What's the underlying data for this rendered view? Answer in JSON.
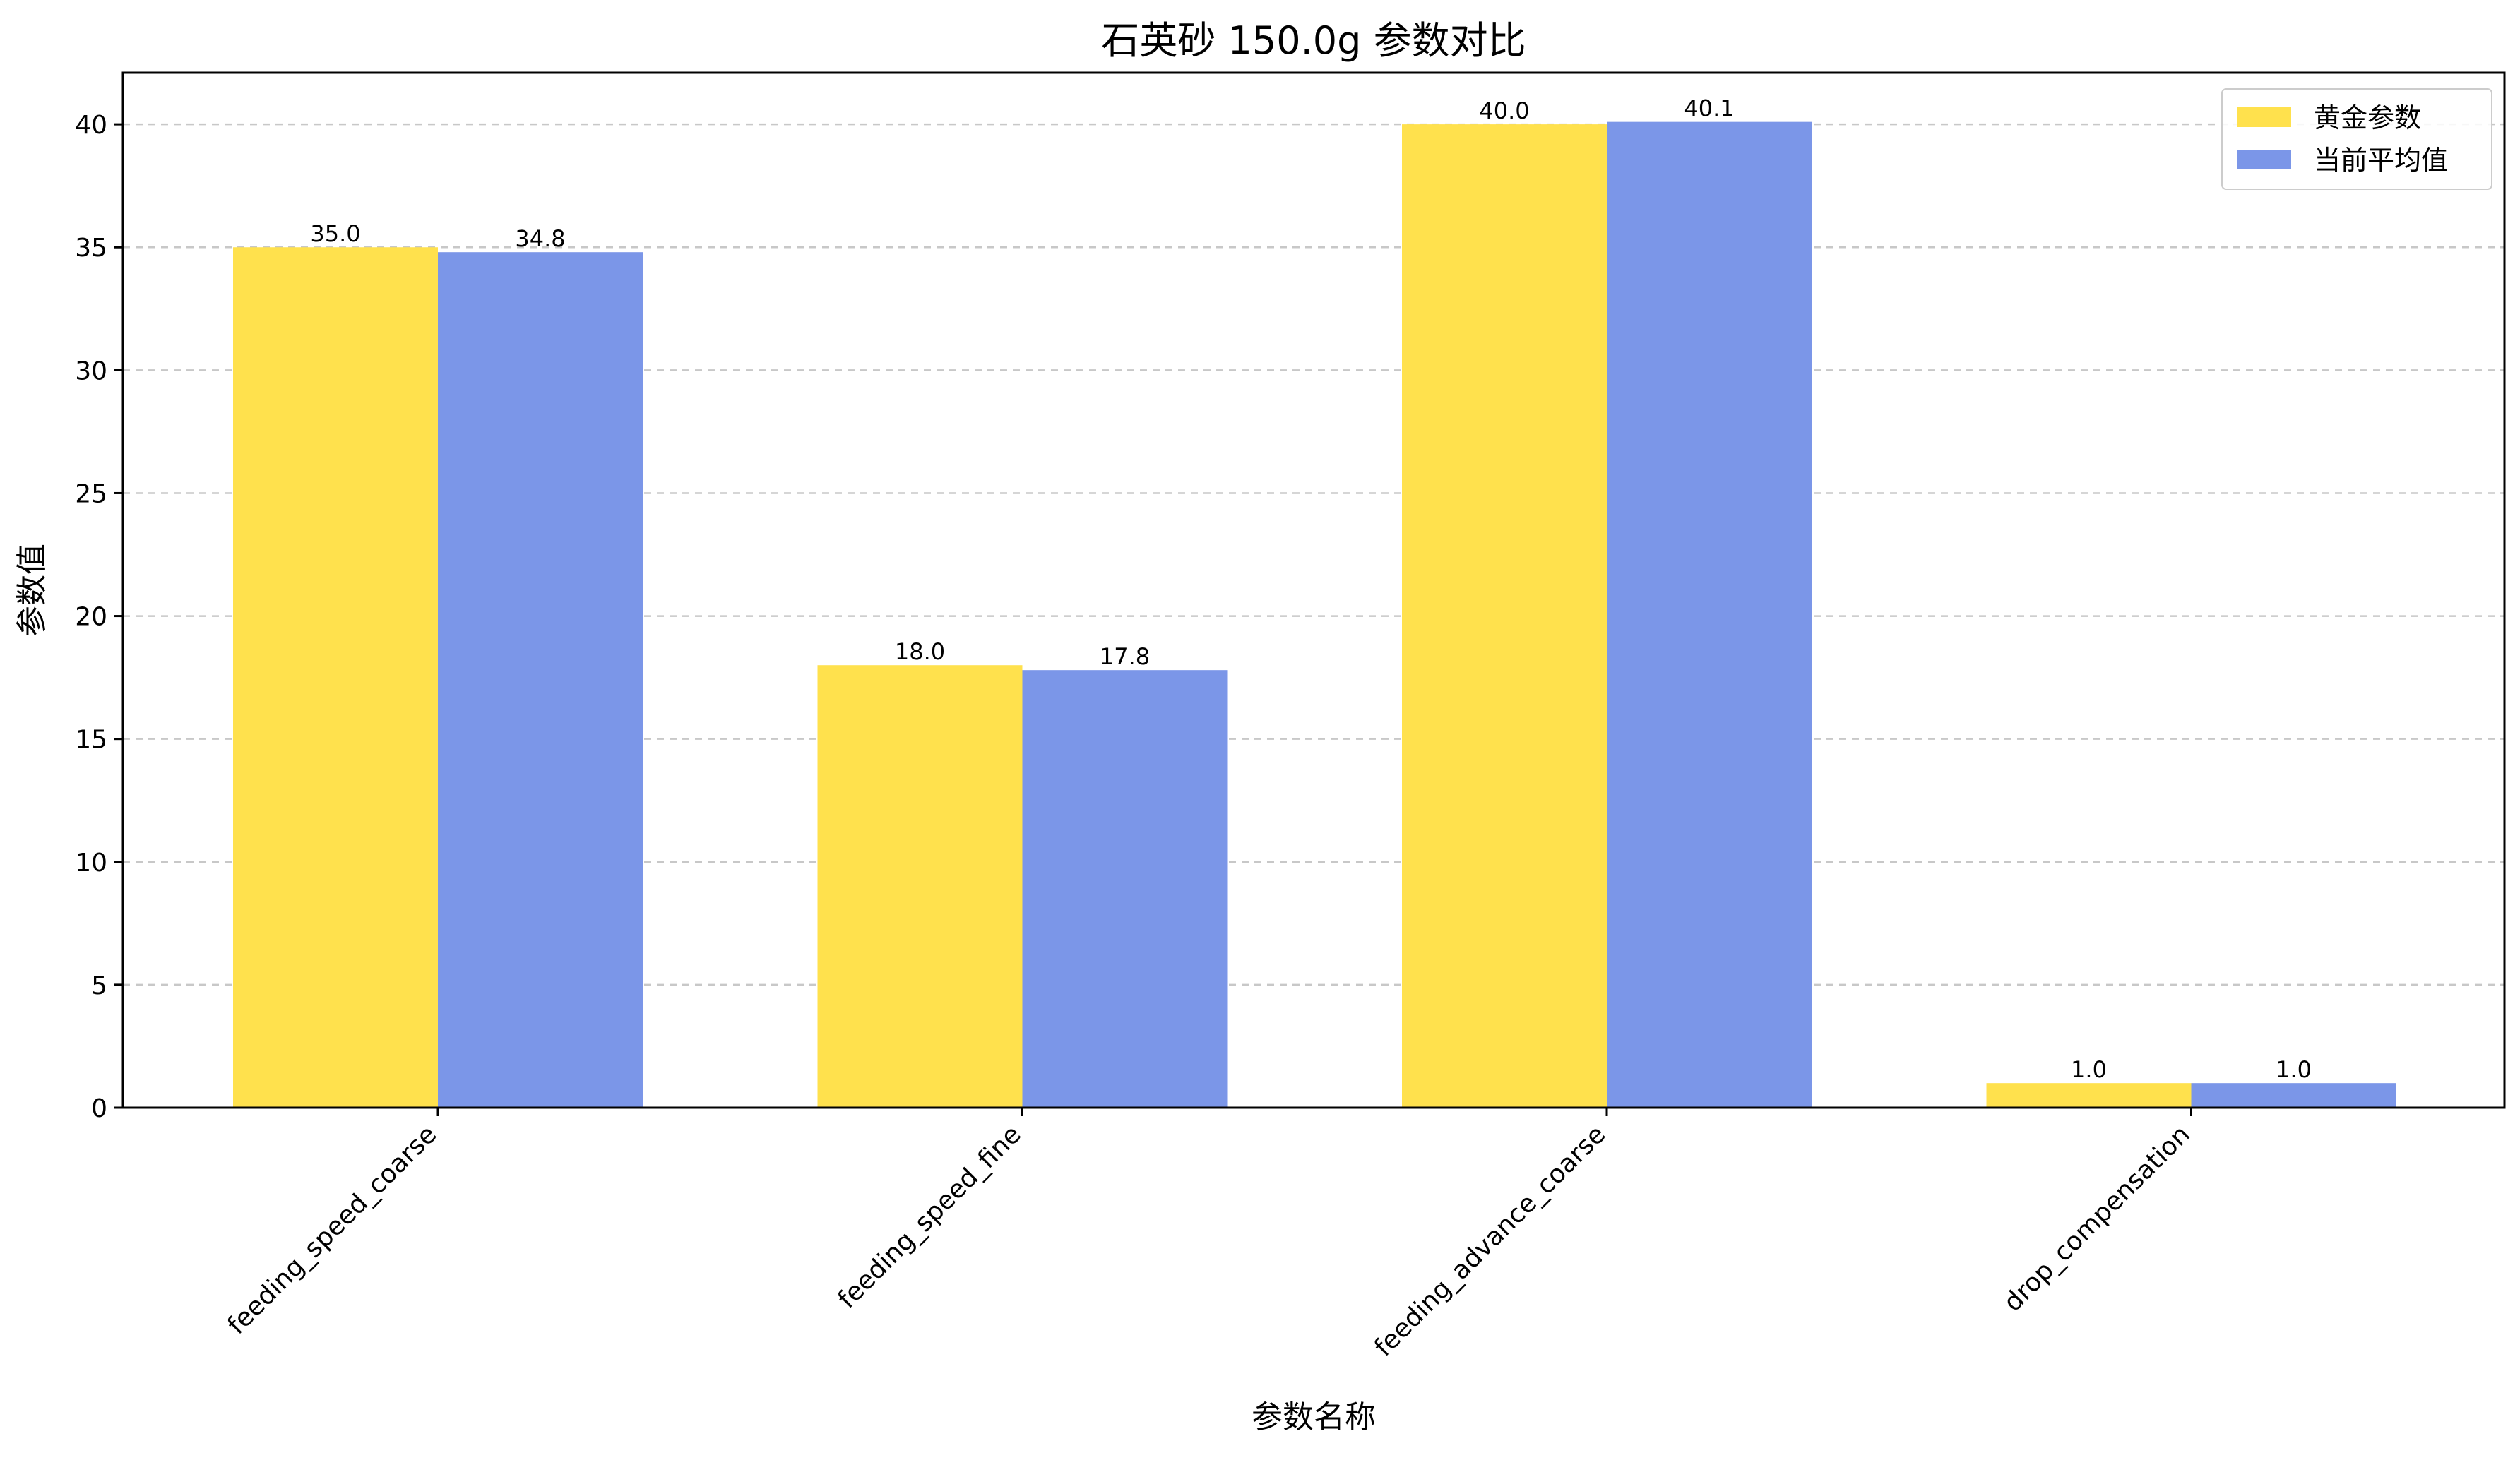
{
  "chart_data": {
    "type": "bar",
    "title": "石英砂 150.0g 参数对比",
    "xlabel": "参数名称",
    "ylabel": "参数值",
    "categories": [
      "feeding_speed_coarse",
      "feeding_speed_fine",
      "feeding_advance_coarse",
      "drop_compensation"
    ],
    "series": [
      {
        "name": "黄金参数",
        "values": [
          35.0,
          18.0,
          40.0,
          1.0
        ],
        "labels": [
          "35.0",
          "18.0",
          "40.0",
          "1.0"
        ],
        "color": "#FFE14D"
      },
      {
        "name": "当前平均值",
        "values": [
          34.8,
          17.8,
          40.1,
          1.0
        ],
        "labels": [
          "34.8",
          "17.8",
          "40.1",
          "1.0"
        ],
        "color": "#7B96E8"
      }
    ],
    "ylim": [
      0,
      42.1
    ],
    "yticks": [
      0,
      5,
      10,
      15,
      20,
      25,
      30,
      35,
      40
    ],
    "grid": "y-dashed",
    "legend": "top-right"
  }
}
